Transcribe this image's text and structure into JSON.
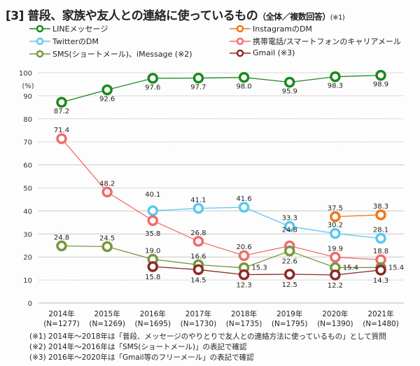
{
  "title": {
    "main": "[3] 普段、家族や友人との連絡に使っているもの",
    "sub": "（全体／複数回答）",
    "note": "(※1)"
  },
  "chart_data": {
    "type": "line",
    "title": "[3] 普段、家族や友人との連絡に使っているもの（全体／複数回答）(※1)",
    "ylabel": "(%)",
    "ylim": [
      0,
      100
    ],
    "yticks": [
      0,
      10,
      20,
      30,
      40,
      50,
      60,
      70,
      80,
      90,
      100
    ],
    "grid": true,
    "legend_position": "top",
    "categories": [
      "2014年",
      "2015年",
      "2016年",
      "2017年",
      "2018年",
      "2019年",
      "2020年",
      "2021年"
    ],
    "category_n": [
      "(N=1277)",
      "(N=1269)",
      "(N=1695)",
      "(N=1730)",
      "(N=1735)",
      "(N=1795)",
      "(N=1390)",
      "(N=1480)"
    ],
    "series": [
      {
        "name": "LINEメッセージ",
        "color": "#1a8a1a",
        "values": [
          87.2,
          92.6,
          97.6,
          97.7,
          98.0,
          95.9,
          98.3,
          98.9
        ]
      },
      {
        "name": "InstagramのDM",
        "color": "#f07818",
        "values": [
          null,
          null,
          null,
          null,
          null,
          null,
          37.5,
          38.3
        ]
      },
      {
        "name": "TwitterのDM",
        "color": "#5cc8f0",
        "values": [
          null,
          null,
          40.1,
          41.1,
          41.6,
          33.3,
          30.2,
          28.1
        ]
      },
      {
        "name": "携帯電話/スマートフォンのキャリアメール",
        "color": "#f06c6c",
        "values": [
          71.4,
          48.2,
          35.8,
          26.8,
          20.6,
          24.8,
          19.9,
          18.8
        ]
      },
      {
        "name": "SMS(ショートメール)、iMessage (※2)",
        "color": "#78963a",
        "values": [
          24.8,
          24.5,
          19.0,
          16.6,
          15.3,
          22.6,
          15.4,
          15.4
        ]
      },
      {
        "name": "Gmail (※3)",
        "color": "#8c2a2a",
        "values": [
          null,
          null,
          15.8,
          14.5,
          12.3,
          12.5,
          12.2,
          14.3
        ]
      }
    ]
  },
  "footnotes": [
    "(※1) 2014年～2018年は「普段、メッセージのやりとりで友人との連絡方法に使っているもの」として質問",
    "(※2) 2014年～2016年は「SMS(ショートメール)」の表記で確認",
    "(※3) 2016年～2020年は「Gmail等のフリーメール」の表記で確認"
  ]
}
